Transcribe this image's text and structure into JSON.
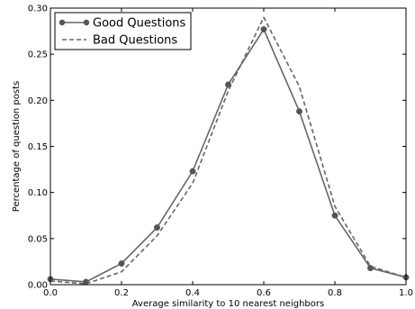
{
  "chart_data": {
    "type": "line",
    "xlabel": "Average similarity to 10 nearest neighbors",
    "ylabel": "Percentage of question posts",
    "xlim": [
      0.0,
      1.0
    ],
    "ylim": [
      0.0,
      0.3
    ],
    "xticks": [
      "0.0",
      "0.2",
      "0.4",
      "0.6",
      "0.8",
      "1.0"
    ],
    "xtick_values": [
      0.0,
      0.2,
      0.4,
      0.6,
      0.8,
      1.0
    ],
    "yticks": [
      "0.00",
      "0.05",
      "0.10",
      "0.15",
      "0.20",
      "0.25",
      "0.30"
    ],
    "ytick_values": [
      0.0,
      0.05,
      0.1,
      0.15,
      0.2,
      0.25,
      0.3
    ],
    "grid": false,
    "legend_position": "top-left",
    "x": [
      0.0,
      0.1,
      0.2,
      0.3,
      0.4,
      0.5,
      0.6,
      0.7,
      0.8,
      0.9,
      1.0
    ],
    "series": [
      {
        "name": "Good Questions",
        "style": "solid",
        "marker": "circle",
        "color": "#666666",
        "values": [
          0.006,
          0.003,
          0.023,
          0.062,
          0.123,
          0.217,
          0.277,
          0.188,
          0.075,
          0.018,
          0.008
        ]
      },
      {
        "name": "Bad Questions",
        "style": "dashed",
        "marker": "none",
        "color": "#666666",
        "values": [
          0.004,
          0.001,
          0.014,
          0.053,
          0.11,
          0.21,
          0.29,
          0.215,
          0.085,
          0.02,
          0.008
        ]
      }
    ]
  }
}
